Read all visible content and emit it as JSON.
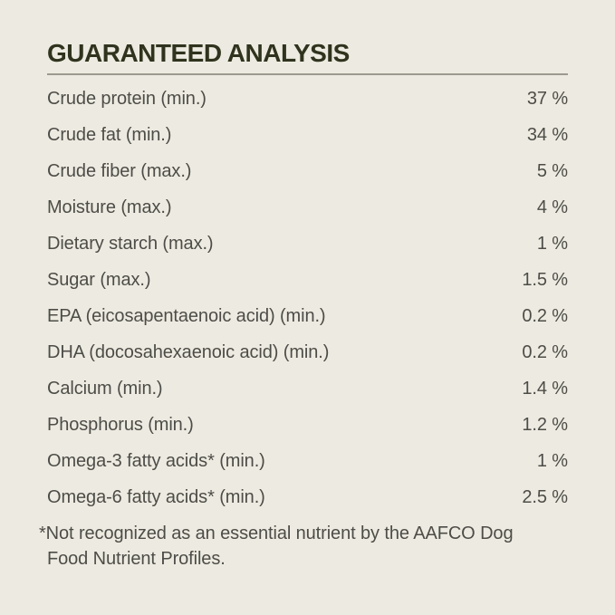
{
  "colors": {
    "background": "#EDEBE1",
    "title_text": "#30331D",
    "divider": "#9C9A8F",
    "body_text": "#4D4C47"
  },
  "header": {
    "title": "GUARANTEED ANALYSIS"
  },
  "table": {
    "rows": [
      {
        "label": "Crude protein (min.)",
        "value": "37 %"
      },
      {
        "label": "Crude fat (min.)",
        "value": "34 %"
      },
      {
        "label": "Crude fiber (max.)",
        "value": "5 %"
      },
      {
        "label": "Moisture (max.)",
        "value": "4 %"
      },
      {
        "label": "Dietary starch (max.)",
        "value": "1 %"
      },
      {
        "label": "Sugar (max.)",
        "value": "1.5 %"
      },
      {
        "label": "EPA (eicosapentaenoic acid) (min.)",
        "value": "0.2 %"
      },
      {
        "label": "DHA (docosahexaenoic acid) (min.)",
        "value": "0.2 %"
      },
      {
        "label": "Calcium (min.)",
        "value": "1.4 %"
      },
      {
        "label": "Phosphorus (min.)",
        "value": "1.2 %"
      },
      {
        "label": "Omega-3 fatty acids* (min.)",
        "value": "1 %"
      },
      {
        "label": "Omega-6 fatty acids* (min.)",
        "value": "2.5 %"
      }
    ]
  },
  "footnote": {
    "lines": [
      "*Not recognized as an essential nutrient by the AAFCO Dog",
      "Food Nutrient Profiles."
    ]
  }
}
